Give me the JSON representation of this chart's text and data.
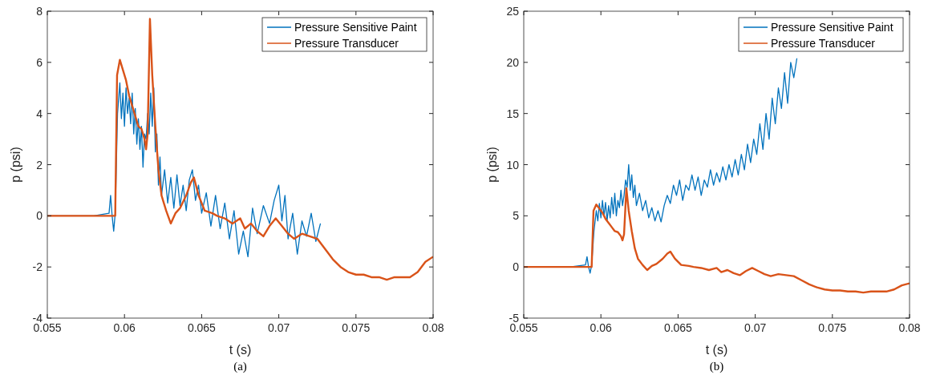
{
  "chart_data": [
    {
      "type": "line",
      "xlabel": "t (s)",
      "ylabel": "p (psi)",
      "annotations": [
        "(a)"
      ],
      "xlim": [
        0.055,
        0.08
      ],
      "ylim": [
        -4,
        8
      ],
      "xticks": [
        0.055,
        0.06,
        0.065,
        0.07,
        0.075,
        0.08
      ],
      "yticks": [
        -4,
        -2,
        0,
        2,
        4,
        6,
        8
      ],
      "legend": "top right",
      "grid": false,
      "series": [
        {
          "name": "Pressure Sensitive Paint",
          "color": "#0072bd",
          "x": [
            0.055,
            0.058,
            0.059,
            0.0591,
            0.0592,
            0.0593,
            0.0594,
            0.05955,
            0.0597,
            0.0598,
            0.0599,
            0.06,
            0.0601,
            0.0602,
            0.0603,
            0.0604,
            0.0605,
            0.0606,
            0.0607,
            0.0608,
            0.0609,
            0.061,
            0.0611,
            0.0612,
            0.0613,
            0.0614,
            0.0615,
            0.0616,
            0.0617,
            0.0618,
            0.0619,
            0.062,
            0.0621,
            0.0622,
            0.0623,
            0.0624,
            0.0626,
            0.0628,
            0.063,
            0.0632,
            0.0634,
            0.0636,
            0.0638,
            0.064,
            0.0642,
            0.0644,
            0.0646,
            0.0648,
            0.065,
            0.0653,
            0.0656,
            0.0659,
            0.0662,
            0.0665,
            0.0668,
            0.0671,
            0.0674,
            0.0677,
            0.068,
            0.0683,
            0.0686,
            0.069,
            0.0694,
            0.0697,
            0.07,
            0.0702,
            0.0704,
            0.0706,
            0.0709,
            0.0712,
            0.0715,
            0.0718,
            0.0721,
            0.0724,
            0.0727
          ],
          "values": [
            0,
            0,
            0.1,
            0.8,
            0,
            -0.6,
            0.1,
            4.0,
            5.2,
            3.8,
            4.8,
            3.5,
            5.0,
            4.0,
            4.6,
            3.6,
            4.8,
            3.2,
            4.2,
            2.8,
            3.8,
            2.6,
            3.5,
            1.9,
            3.2,
            3.0,
            4.0,
            3.2,
            4.8,
            3.5,
            5.0,
            2.5,
            3.2,
            1.2,
            2.3,
            0.8,
            1.8,
            0.5,
            1.5,
            0.3,
            1.6,
            0.4,
            1.2,
            0.2,
            1.4,
            1.8,
            0.6,
            1.2,
            0.1,
            0.9,
            -0.4,
            0.8,
            -0.5,
            0.5,
            -0.9,
            0.2,
            -1.5,
            -0.6,
            -1.6,
            0.3,
            -0.7,
            0.4,
            -0.3,
            0.6,
            1.2,
            -0.2,
            0.8,
            -0.9,
            0.1,
            -1.5,
            -0.2,
            -0.8,
            0.1,
            -1.0,
            -0.3
          ]
        },
        {
          "name": "Pressure Transducer",
          "color": "#d95319",
          "x": [
            0.055,
            0.0565,
            0.058,
            0.059,
            0.0594,
            0.05952,
            0.0597,
            0.0599,
            0.0601,
            0.0603,
            0.0605,
            0.0607,
            0.0609,
            0.0611,
            0.0613,
            0.0614,
            0.0615,
            0.06165,
            0.0618,
            0.062,
            0.0622,
            0.0624,
            0.0627,
            0.063,
            0.0633,
            0.0636,
            0.064,
            0.0643,
            0.0645,
            0.0648,
            0.0652,
            0.0657,
            0.066,
            0.0665,
            0.067,
            0.0675,
            0.0678,
            0.0682,
            0.0686,
            0.069,
            0.0694,
            0.0698,
            0.0702,
            0.0706,
            0.071,
            0.0715,
            0.072,
            0.0725,
            0.073,
            0.0735,
            0.074,
            0.0745,
            0.075,
            0.0755,
            0.076,
            0.0765,
            0.077,
            0.0775,
            0.078,
            0.0785,
            0.079,
            0.0795,
            0.08
          ],
          "values": [
            0,
            0,
            0,
            0,
            0,
            5.5,
            6.1,
            5.7,
            5.3,
            4.7,
            4.3,
            3.9,
            3.5,
            3.4,
            3.0,
            2.6,
            3.2,
            7.7,
            5.5,
            3.5,
            1.8,
            0.8,
            0.2,
            -0.3,
            0.1,
            0.3,
            0.8,
            1.3,
            1.5,
            0.8,
            0.2,
            0.1,
            0,
            -0.1,
            -0.3,
            -0.1,
            -0.5,
            -0.3,
            -0.6,
            -0.8,
            -0.4,
            -0.1,
            -0.4,
            -0.7,
            -0.9,
            -0.7,
            -0.8,
            -0.9,
            -1.3,
            -1.7,
            -2.0,
            -2.2,
            -2.3,
            -2.3,
            -2.4,
            -2.4,
            -2.5,
            -2.4,
            -2.4,
            -2.4,
            -2.2,
            -1.8,
            -1.6
          ]
        }
      ]
    },
    {
      "type": "line",
      "xlabel": "t (s)",
      "ylabel": "p (psi)",
      "annotations": [
        "(b)"
      ],
      "xlim": [
        0.055,
        0.08
      ],
      "ylim": [
        -5,
        25
      ],
      "xticks": [
        0.055,
        0.06,
        0.065,
        0.07,
        0.075,
        0.08
      ],
      "yticks": [
        -5,
        0,
        5,
        10,
        15,
        20,
        25
      ],
      "legend": "top right",
      "grid": false,
      "series": [
        {
          "name": "Pressure Sensitive Paint",
          "color": "#0072bd",
          "x": [
            0.055,
            0.058,
            0.059,
            0.0591,
            0.0592,
            0.0593,
            0.0594,
            0.05955,
            0.0597,
            0.0598,
            0.0599,
            0.06,
            0.0601,
            0.0602,
            0.0603,
            0.0604,
            0.0605,
            0.0606,
            0.0607,
            0.0608,
            0.0609,
            0.061,
            0.0611,
            0.0612,
            0.0613,
            0.0614,
            0.0615,
            0.0616,
            0.0617,
            0.0618,
            0.0619,
            0.062,
            0.0621,
            0.0622,
            0.0623,
            0.0625,
            0.0627,
            0.0629,
            0.0631,
            0.0633,
            0.0635,
            0.0637,
            0.0639,
            0.0641,
            0.0643,
            0.0645,
            0.0647,
            0.0649,
            0.0651,
            0.0653,
            0.0655,
            0.0657,
            0.0659,
            0.0661,
            0.0663,
            0.0665,
            0.0667,
            0.0669,
            0.0671,
            0.0673,
            0.0675,
            0.0677,
            0.0679,
            0.0681,
            0.0683,
            0.0685,
            0.0687,
            0.0689,
            0.0691,
            0.0693,
            0.0695,
            0.0697,
            0.0699,
            0.0701,
            0.0703,
            0.0705,
            0.0707,
            0.0709,
            0.0711,
            0.0713,
            0.0715,
            0.0717,
            0.0719,
            0.0721,
            0.0723,
            0.0725,
            0.0727
          ],
          "values": [
            0,
            0,
            0.2,
            1.0,
            0,
            -0.6,
            0.2,
            3.5,
            5.5,
            4.5,
            6.2,
            4.8,
            6.5,
            5.0,
            6.3,
            4.5,
            6.0,
            4.8,
            6.8,
            5.2,
            7.2,
            5.0,
            6.5,
            5.8,
            7.5,
            6.0,
            7.0,
            8.5,
            7.8,
            10.0,
            7.5,
            9.0,
            6.8,
            8.0,
            6.0,
            7.2,
            5.5,
            6.5,
            4.8,
            5.8,
            4.5,
            5.5,
            4.4,
            6.0,
            7.0,
            6.2,
            8.0,
            7.0,
            8.5,
            6.5,
            8.0,
            7.5,
            9.0,
            7.5,
            8.8,
            7.0,
            8.5,
            7.8,
            9.5,
            8.0,
            9.2,
            8.3,
            9.8,
            8.5,
            10.0,
            8.8,
            10.5,
            9.0,
            11.0,
            9.5,
            12.0,
            10.2,
            12.5,
            11.0,
            14.0,
            11.5,
            15.0,
            12.5,
            16.5,
            14.0,
            17.5,
            15.5,
            19.0,
            16.0,
            20.0,
            18.5,
            20.4
          ]
        },
        {
          "name": "Pressure Transducer",
          "color": "#d95319",
          "x": [
            0.055,
            0.0565,
            0.058,
            0.059,
            0.0594,
            0.05952,
            0.0597,
            0.0599,
            0.0601,
            0.0603,
            0.0605,
            0.0607,
            0.0609,
            0.0611,
            0.0613,
            0.0614,
            0.0615,
            0.06165,
            0.0618,
            0.062,
            0.0622,
            0.0624,
            0.0627,
            0.063,
            0.0633,
            0.0636,
            0.064,
            0.0643,
            0.0645,
            0.0648,
            0.0652,
            0.0657,
            0.066,
            0.0665,
            0.067,
            0.0675,
            0.0678,
            0.0682,
            0.0686,
            0.069,
            0.0694,
            0.0698,
            0.0702,
            0.0706,
            0.071,
            0.0715,
            0.072,
            0.0725,
            0.073,
            0.0735,
            0.074,
            0.0745,
            0.075,
            0.0755,
            0.076,
            0.0765,
            0.077,
            0.0775,
            0.078,
            0.0785,
            0.079,
            0.0795,
            0.08
          ],
          "values": [
            0,
            0,
            0,
            0,
            0,
            5.5,
            6.1,
            5.7,
            5.3,
            4.7,
            4.3,
            3.9,
            3.5,
            3.4,
            3.0,
            2.6,
            3.2,
            7.7,
            5.5,
            3.5,
            1.8,
            0.8,
            0.2,
            -0.3,
            0.1,
            0.3,
            0.8,
            1.3,
            1.5,
            0.8,
            0.2,
            0.1,
            0,
            -0.1,
            -0.3,
            -0.1,
            -0.5,
            -0.3,
            -0.6,
            -0.8,
            -0.4,
            -0.1,
            -0.4,
            -0.7,
            -0.9,
            -0.7,
            -0.8,
            -0.9,
            -1.3,
            -1.7,
            -2.0,
            -2.2,
            -2.3,
            -2.3,
            -2.4,
            -2.4,
            -2.5,
            -2.4,
            -2.4,
            -2.4,
            -2.2,
            -1.8,
            -1.6
          ]
        }
      ]
    }
  ]
}
